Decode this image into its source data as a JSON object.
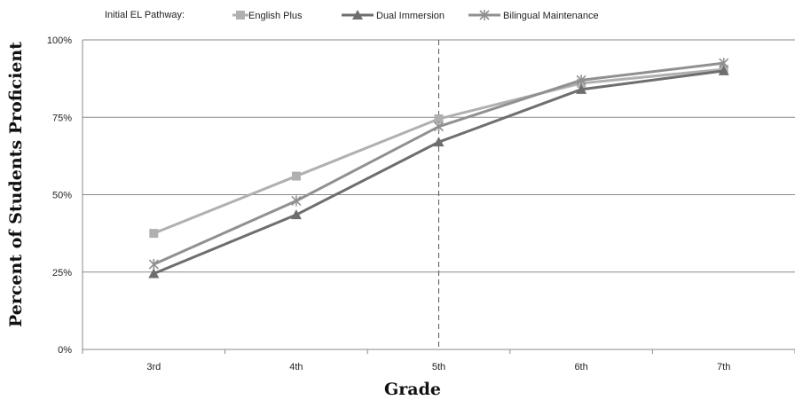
{
  "chart_data": {
    "type": "line",
    "xlabel": "Grade",
    "ylabel": "Percent of Students Proficient",
    "categories": [
      "3rd",
      "4th",
      "5th",
      "6th",
      "7th"
    ],
    "ylim": [
      0,
      100
    ],
    "yticks": [
      "0%",
      "25%",
      "50%",
      "75%",
      "100%"
    ],
    "legend_title": "Initial EL Pathway:",
    "legend_position": "top",
    "grid": "horizontal",
    "reference_line": {
      "category": "5th",
      "style": "dashed"
    },
    "series": [
      {
        "name": "English Plus",
        "marker": "square",
        "color": "#b0b0b0",
        "values": [
          37.5,
          56,
          74.5,
          86,
          90.5
        ]
      },
      {
        "name": "Dual Immersion",
        "marker": "triangle",
        "color": "#6e6e6e",
        "values": [
          24.5,
          43.5,
          67,
          84,
          90
        ]
      },
      {
        "name": "Bilingual Maintenance",
        "marker": "star",
        "color": "#909090",
        "values": [
          27.5,
          48,
          72,
          87,
          92.5
        ]
      }
    ]
  }
}
